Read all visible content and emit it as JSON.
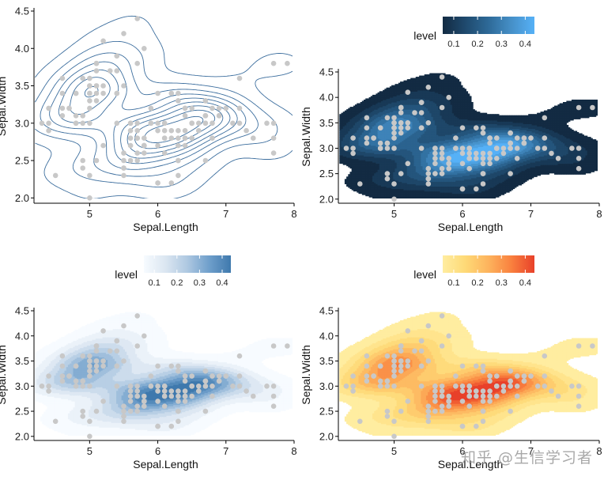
{
  "watermark": "知乎 @生信学习者",
  "chart_data": [
    {
      "type": "contour",
      "xlabel": "Sepal.Length",
      "ylabel": "Sepal.Width",
      "xlim": [
        4.3,
        8.0
      ],
      "ylim": [
        1.95,
        4.5
      ],
      "x_ticks": [
        "5",
        "6",
        "7",
        "8"
      ],
      "y_ticks": [
        "2.0",
        "2.5",
        "3.0",
        "3.5",
        "4.0",
        "4.5"
      ],
      "contour_color": "#3c6e9e",
      "legend": null
    },
    {
      "type": "density-fill",
      "xlabel": "Sepal.Length",
      "ylabel": "Sepal.Width",
      "xlim": [
        4.3,
        8.0
      ],
      "ylim": [
        1.95,
        4.5
      ],
      "x_ticks": [
        "5",
        "6",
        "7",
        "8"
      ],
      "y_ticks": [
        "2.0",
        "2.5",
        "3.0",
        "3.5",
        "4.0",
        "4.5"
      ],
      "palette": [
        "#132b43",
        "#1f4a6e",
        "#2e6a98",
        "#4690c8",
        "#56b1f7"
      ],
      "legend": {
        "title": "level",
        "labels": [
          "0.1",
          "0.2",
          "0.3",
          "0.4"
        ],
        "position": "top-right"
      }
    },
    {
      "type": "density-fill",
      "xlabel": "Sepal.Length",
      "ylabel": "Sepal.Width",
      "xlim": [
        4.3,
        8.0
      ],
      "ylim": [
        1.95,
        4.5
      ],
      "x_ticks": [
        "5",
        "6",
        "7",
        "8"
      ],
      "y_ticks": [
        "2.0",
        "2.5",
        "3.0",
        "3.5",
        "4.0",
        "4.5"
      ],
      "palette": [
        "#f7fbff",
        "#dbe6f1",
        "#aec8e1",
        "#6f9fcb",
        "#3f79ad"
      ],
      "legend": {
        "title": "level",
        "labels": [
          "0.1",
          "0.2",
          "0.3",
          "0.4"
        ],
        "position": "top-center"
      }
    },
    {
      "type": "density-fill",
      "xlabel": "Sepal.Length",
      "ylabel": "Sepal.Width",
      "xlim": [
        4.3,
        8.0
      ],
      "ylim": [
        1.95,
        4.5
      ],
      "x_ticks": [
        "5",
        "6",
        "7",
        "8"
      ],
      "y_ticks": [
        "2.0",
        "2.5",
        "3.0",
        "3.5",
        "4.0",
        "4.5"
      ],
      "palette": [
        "#ffeda0",
        "#fed976",
        "#fdb35d",
        "#f9803e",
        "#e8412a"
      ],
      "legend": {
        "title": "level",
        "labels": [
          "0.1",
          "0.2",
          "0.3",
          "0.4"
        ],
        "position": "top-right"
      }
    }
  ],
  "points": [
    [
      5.1,
      3.5
    ],
    [
      4.9,
      3.0
    ],
    [
      4.7,
      3.2
    ],
    [
      4.6,
      3.1
    ],
    [
      5.0,
      3.6
    ],
    [
      5.4,
      3.9
    ],
    [
      4.6,
      3.4
    ],
    [
      5.0,
      3.4
    ],
    [
      4.4,
      2.9
    ],
    [
      4.9,
      3.1
    ],
    [
      5.4,
      3.7
    ],
    [
      4.8,
      3.4
    ],
    [
      4.8,
      3.0
    ],
    [
      4.3,
      3.0
    ],
    [
      5.8,
      4.0
    ],
    [
      5.7,
      4.4
    ],
    [
      5.4,
      3.9
    ],
    [
      5.1,
      3.5
    ],
    [
      5.7,
      3.8
    ],
    [
      5.1,
      3.8
    ],
    [
      5.4,
      3.4
    ],
    [
      5.1,
      3.7
    ],
    [
      4.6,
      3.6
    ],
    [
      5.1,
      3.3
    ],
    [
      4.8,
      3.4
    ],
    [
      5.0,
      3.0
    ],
    [
      5.0,
      3.4
    ],
    [
      5.2,
      3.5
    ],
    [
      5.2,
      3.4
    ],
    [
      4.7,
      3.2
    ],
    [
      4.8,
      3.1
    ],
    [
      5.4,
      3.4
    ],
    [
      5.2,
      4.1
    ],
    [
      5.5,
      4.2
    ],
    [
      4.9,
      3.1
    ],
    [
      5.0,
      3.2
    ],
    [
      5.5,
      3.5
    ],
    [
      4.9,
      3.6
    ],
    [
      4.4,
      3.0
    ],
    [
      5.1,
      3.4
    ],
    [
      5.0,
      3.5
    ],
    [
      4.5,
      2.3
    ],
    [
      4.4,
      3.2
    ],
    [
      5.0,
      3.5
    ],
    [
      5.1,
      3.8
    ],
    [
      4.8,
      3.0
    ],
    [
      5.1,
      3.8
    ],
    [
      4.6,
      3.2
    ],
    [
      5.3,
      3.7
    ],
    [
      5.0,
      3.3
    ],
    [
      7.0,
      3.2
    ],
    [
      6.4,
      3.2
    ],
    [
      6.9,
      3.1
    ],
    [
      5.5,
      2.3
    ],
    [
      6.5,
      2.8
    ],
    [
      5.7,
      2.8
    ],
    [
      6.3,
      3.3
    ],
    [
      4.9,
      2.4
    ],
    [
      6.6,
      2.9
    ],
    [
      5.2,
      2.7
    ],
    [
      5.0,
      2.0
    ],
    [
      5.9,
      3.0
    ],
    [
      6.0,
      2.2
    ],
    [
      6.1,
      2.9
    ],
    [
      5.6,
      2.9
    ],
    [
      6.7,
      3.1
    ],
    [
      5.6,
      3.0
    ],
    [
      5.8,
      2.7
    ],
    [
      6.2,
      2.2
    ],
    [
      5.6,
      2.5
    ],
    [
      5.9,
      3.2
    ],
    [
      6.1,
      2.8
    ],
    [
      6.3,
      2.5
    ],
    [
      6.1,
      2.8
    ],
    [
      6.4,
      2.9
    ],
    [
      6.6,
      3.0
    ],
    [
      6.8,
      2.8
    ],
    [
      6.7,
      3.0
    ],
    [
      6.0,
      2.9
    ],
    [
      5.7,
      2.6
    ],
    [
      5.5,
      2.4
    ],
    [
      5.5,
      2.4
    ],
    [
      5.8,
      2.7
    ],
    [
      6.0,
      2.7
    ],
    [
      5.4,
      3.0
    ],
    [
      6.0,
      3.4
    ],
    [
      6.7,
      3.1
    ],
    [
      6.3,
      2.3
    ],
    [
      5.6,
      3.0
    ],
    [
      5.5,
      2.5
    ],
    [
      5.5,
      2.6
    ],
    [
      6.1,
      3.0
    ],
    [
      5.8,
      2.6
    ],
    [
      5.0,
      2.3
    ],
    [
      5.6,
      2.7
    ],
    [
      5.7,
      3.0
    ],
    [
      5.7,
      2.9
    ],
    [
      6.2,
      2.9
    ],
    [
      5.1,
      2.5
    ],
    [
      5.7,
      2.8
    ],
    [
      6.3,
      3.3
    ],
    [
      5.8,
      2.7
    ],
    [
      7.1,
      3.0
    ],
    [
      6.3,
      2.9
    ],
    [
      6.5,
      3.0
    ],
    [
      7.6,
      3.0
    ],
    [
      4.9,
      2.5
    ],
    [
      7.3,
      2.9
    ],
    [
      6.7,
      2.5
    ],
    [
      7.2,
      3.6
    ],
    [
      6.5,
      3.2
    ],
    [
      6.4,
      2.7
    ],
    [
      6.8,
      3.0
    ],
    [
      5.7,
      2.5
    ],
    [
      5.8,
      2.8
    ],
    [
      6.4,
      3.2
    ],
    [
      6.5,
      3.0
    ],
    [
      7.7,
      3.8
    ],
    [
      7.7,
      2.6
    ],
    [
      6.0,
      2.2
    ],
    [
      6.9,
      3.2
    ],
    [
      5.6,
      2.8
    ],
    [
      7.7,
      2.8
    ],
    [
      6.3,
      2.7
    ],
    [
      6.7,
      3.3
    ],
    [
      7.2,
      3.2
    ],
    [
      6.2,
      2.8
    ],
    [
      6.1,
      3.0
    ],
    [
      6.4,
      2.8
    ],
    [
      7.2,
      3.0
    ],
    [
      7.4,
      2.8
    ],
    [
      7.9,
      3.8
    ],
    [
      6.4,
      2.8
    ],
    [
      6.3,
      2.8
    ],
    [
      6.1,
      2.6
    ],
    [
      7.7,
      3.0
    ],
    [
      6.3,
      3.4
    ],
    [
      6.4,
      3.1
    ],
    [
      6.0,
      3.0
    ],
    [
      6.9,
      3.1
    ],
    [
      6.7,
      3.1
    ],
    [
      6.9,
      3.1
    ],
    [
      5.8,
      2.7
    ],
    [
      6.8,
      3.2
    ],
    [
      6.7,
      3.3
    ],
    [
      6.7,
      3.0
    ],
    [
      6.3,
      2.5
    ],
    [
      6.5,
      3.0
    ],
    [
      6.2,
      3.4
    ],
    [
      5.9,
      3.0
    ]
  ]
}
